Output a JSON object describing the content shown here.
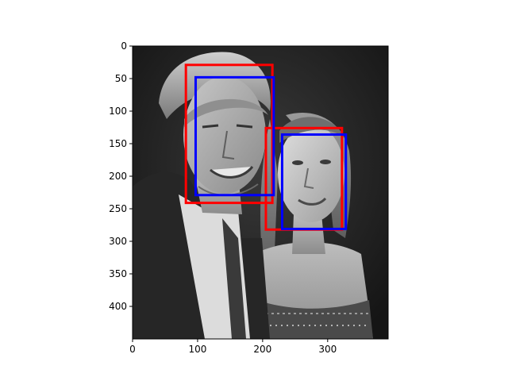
{
  "chart_data": {
    "type": "image",
    "title": "",
    "xlabel": "",
    "ylabel": "",
    "xlim": [
      0,
      393
    ],
    "ylim": [
      450,
      0
    ],
    "x_ticks": [
      0,
      100,
      200,
      300
    ],
    "y_ticks": [
      0,
      50,
      100,
      150,
      200,
      250,
      300,
      350,
      400
    ],
    "image": {
      "content": "grayscale photograph of a man and a woman posing together",
      "colormap": "gray"
    },
    "series": [
      {
        "color": "#ff0000",
        "boxes": [
          {
            "x0": 82,
            "y0": 29,
            "x1": 215,
            "y1": 241
          },
          {
            "x0": 205,
            "y0": 126,
            "x1": 322,
            "y1": 282
          }
        ]
      },
      {
        "color": "#0000ff",
        "boxes": [
          {
            "x0": 97,
            "y0": 48,
            "x1": 217,
            "y1": 229
          },
          {
            "x0": 230,
            "y0": 136,
            "x1": 328,
            "y1": 281
          }
        ]
      }
    ]
  }
}
